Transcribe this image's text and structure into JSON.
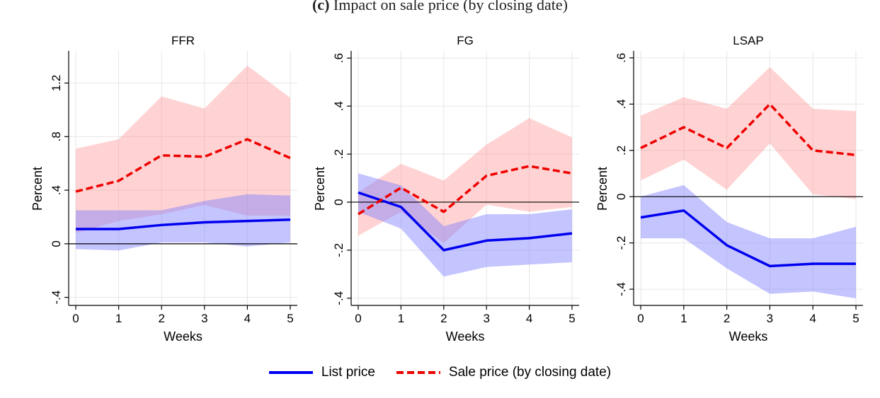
{
  "figure": {
    "title_letter": "(c)",
    "title_text": "Impact on sale price (by closing date)"
  },
  "legend": {
    "list_label": "List price",
    "sale_label": "Sale price (by closing date)"
  },
  "colors": {
    "list": "#0000ee",
    "sale": "#ee0000",
    "list_band": "rgba(125,125,255,0.45)",
    "sale_band": "rgba(255,130,130,0.35)"
  },
  "chart_data": [
    {
      "type": "line",
      "title": "FFR",
      "xlabel": "Weeks",
      "ylabel": "Percent",
      "x": [
        0,
        1,
        2,
        3,
        4,
        5
      ],
      "ylim": [
        -0.46,
        1.44
      ],
      "yticks": [
        -0.4,
        0,
        0.4,
        0.8,
        1.2
      ],
      "ytick_labels": [
        "-.4",
        "0",
        ".4",
        ".8",
        "1.2"
      ],
      "series": [
        {
          "name": "List price",
          "values": [
            0.11,
            0.11,
            0.14,
            0.16,
            0.17,
            0.18
          ],
          "ci_lower": [
            -0.04,
            -0.05,
            0.01,
            0.01,
            -0.02,
            0.01
          ],
          "ci_upper": [
            0.25,
            0.25,
            0.25,
            0.32,
            0.37,
            0.36
          ]
        },
        {
          "name": "Sale price (by closing date)",
          "values": [
            0.39,
            0.47,
            0.66,
            0.65,
            0.78,
            0.64
          ],
          "ci_lower": [
            0.08,
            0.17,
            0.22,
            0.29,
            0.21,
            0.21
          ],
          "ci_upper": [
            0.71,
            0.78,
            1.1,
            1.01,
            1.33,
            1.09
          ]
        }
      ],
      "zero_line": 0,
      "grid": true
    },
    {
      "type": "line",
      "title": "FG",
      "xlabel": "Weeks",
      "ylabel": "Percent",
      "x": [
        0,
        1,
        2,
        3,
        4,
        5
      ],
      "ylim": [
        -0.43,
        0.63
      ],
      "yticks": [
        -0.4,
        -0.2,
        0,
        0.2,
        0.4,
        0.6
      ],
      "ytick_labels": [
        "-.4",
        "-.2",
        "0",
        ".2",
        ".4",
        ".6"
      ],
      "series": [
        {
          "name": "List price",
          "values": [
            0.04,
            -0.02,
            -0.2,
            -0.16,
            -0.15,
            -0.13
          ],
          "ci_lower": [
            -0.04,
            -0.11,
            -0.31,
            -0.27,
            -0.26,
            -0.25
          ],
          "ci_upper": [
            0.12,
            0.07,
            -0.1,
            -0.05,
            -0.05,
            -0.03
          ]
        },
        {
          "name": "Sale price (by closing date)",
          "values": [
            -0.05,
            0.06,
            -0.04,
            0.11,
            0.15,
            0.12
          ],
          "ci_lower": [
            -0.14,
            -0.04,
            -0.17,
            -0.01,
            -0.04,
            -0.02
          ],
          "ci_upper": [
            0.04,
            0.16,
            0.09,
            0.24,
            0.35,
            0.27
          ]
        }
      ],
      "zero_line": 0,
      "grid": true
    },
    {
      "type": "line",
      "title": "LSAP",
      "xlabel": "Weeks",
      "ylabel": "Percent",
      "x": [
        0,
        1,
        2,
        3,
        4,
        5
      ],
      "ylim": [
        -0.47,
        0.63
      ],
      "yticks": [
        -0.4,
        -0.2,
        0,
        0.2,
        0.4,
        0.6
      ],
      "ytick_labels": [
        "-.4",
        "-.2",
        "0",
        ".2",
        ".4",
        ".6"
      ],
      "series": [
        {
          "name": "List price",
          "values": [
            -0.09,
            -0.06,
            -0.21,
            -0.3,
            -0.29,
            -0.29
          ],
          "ci_lower": [
            -0.18,
            -0.18,
            -0.31,
            -0.42,
            -0.41,
            -0.44
          ],
          "ci_upper": [
            0.0,
            0.05,
            -0.11,
            -0.18,
            -0.18,
            -0.13
          ]
        },
        {
          "name": "Sale price (by closing date)",
          "values": [
            0.21,
            0.3,
            0.21,
            0.4,
            0.2,
            0.18
          ],
          "ci_lower": [
            0.07,
            0.16,
            0.03,
            0.23,
            0.01,
            -0.01
          ],
          "ci_upper": [
            0.35,
            0.43,
            0.38,
            0.56,
            0.38,
            0.37
          ]
        }
      ],
      "zero_line": 0,
      "grid": true
    }
  ]
}
